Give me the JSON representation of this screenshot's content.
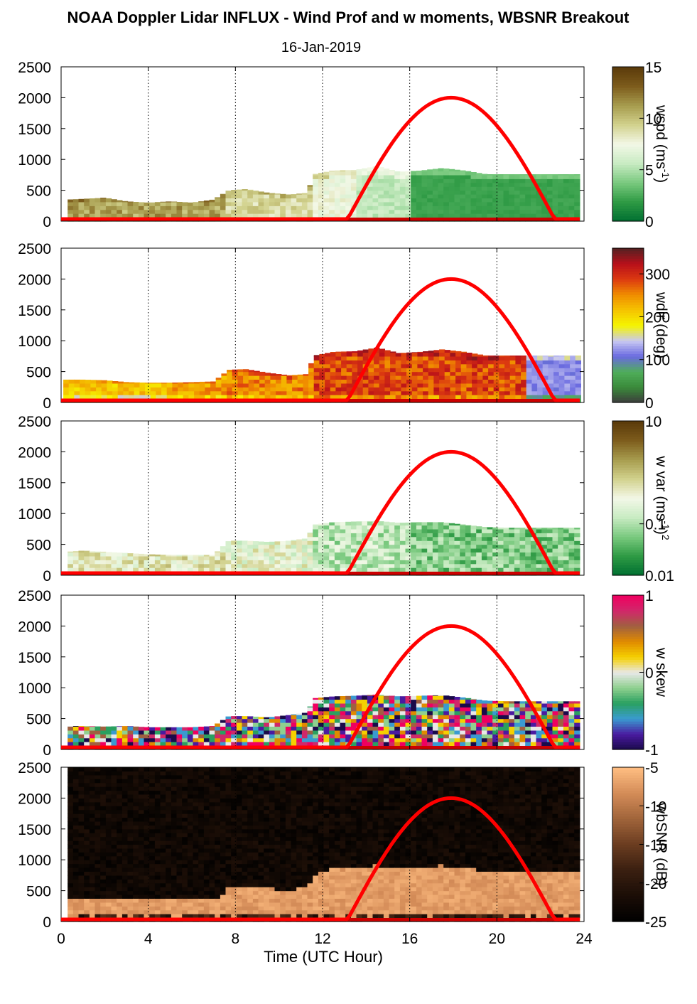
{
  "title": "NOAA Doppler Lidar INFLUX - Wind Prof and w moments, WBSNR Breakout",
  "date": "16-Jan-2019",
  "xlabel": "Time (UTC Hour)",
  "colors": {
    "sun_curve": "#ff0000",
    "fill_baseline": "#cc0000"
  },
  "chart_data": [
    {
      "type": "heatmap",
      "name": "wspd",
      "cbar_label": "wspd (ms",
      "cbar_label_sup": "-1",
      "cbar_label_end": ")",
      "cbar_ticks": [
        "15",
        "10",
        "5",
        "0"
      ],
      "cbar_tick_values": [
        15,
        10,
        5,
        0
      ],
      "cbar_range": [
        0,
        15
      ],
      "xlim": [
        0,
        24
      ],
      "ylim": [
        0,
        2500
      ],
      "x_ticks": [
        "0",
        "4",
        "8",
        "12",
        "16",
        "20",
        "24"
      ],
      "y_ticks": [
        "0",
        "500",
        "1000",
        "1500",
        "2000",
        "2500"
      ],
      "colormap": [
        "#006f31",
        "#2e9a44",
        "#79c97e",
        "#c8ebc2",
        "#f3f8e7",
        "#d2d28e",
        "#a79c4e",
        "#7d5c1c",
        "#5a3a0a"
      ],
      "top_profile": [
        [
          0.3,
          350
        ],
        [
          1,
          360
        ],
        [
          2,
          380
        ],
        [
          3,
          320
        ],
        [
          4,
          300
        ],
        [
          5,
          320
        ],
        [
          6,
          300
        ],
        [
          7,
          350
        ],
        [
          7.7,
          500
        ],
        [
          8.5,
          520
        ],
        [
          9.5,
          460
        ],
        [
          10.5,
          430
        ],
        [
          11.3,
          460
        ],
        [
          11.6,
          760
        ],
        [
          12.5,
          820
        ],
        [
          13.5,
          830
        ],
        [
          14.5,
          890
        ],
        [
          15.5,
          800
        ],
        [
          16.5,
          820
        ],
        [
          17.5,
          860
        ],
        [
          18.5,
          820
        ],
        [
          19.5,
          760
        ],
        [
          20.5,
          760
        ],
        [
          21.5,
          760
        ],
        [
          22.5,
          760
        ],
        [
          23.8,
          760
        ]
      ],
      "regimes": [
        {
          "t0": 0.2,
          "t1": 7.5,
          "value": 11
        },
        {
          "t0": 7.5,
          "t1": 11.5,
          "value": 9
        },
        {
          "t0": 11.5,
          "t1": 13.5,
          "value": 7.5
        },
        {
          "t0": 13.5,
          "t1": 16.0,
          "value": 5.5
        },
        {
          "t0": 16.0,
          "t1": 23.8,
          "value": 2.2
        }
      ]
    },
    {
      "type": "heatmap",
      "name": "wdir",
      "cbar_label": "wdir (deg)",
      "cbar_ticks": [
        "300",
        "200",
        "100",
        "0"
      ],
      "cbar_tick_values": [
        300,
        200,
        100,
        0
      ],
      "cbar_range": [
        0,
        360
      ],
      "xlim": [
        0,
        24
      ],
      "ylim": [
        0,
        2500
      ],
      "x_ticks": [
        "0",
        "4",
        "8",
        "12",
        "16",
        "20",
        "24"
      ],
      "y_ticks": [
        "0",
        "500",
        "1000",
        "1500",
        "2000",
        "2500"
      ],
      "colormap": [
        "#3c3c3c",
        "#3a8a3a",
        "#4fae5a",
        "#6a6ae0",
        "#c9c9f2",
        "#f5f500",
        "#f5c400",
        "#f08c00",
        "#dc3a10",
        "#b80f1a",
        "#552222"
      ],
      "top_profile": [
        [
          0.1,
          370
        ],
        [
          1,
          370
        ],
        [
          2,
          360
        ],
        [
          3,
          330
        ],
        [
          4,
          320
        ],
        [
          5,
          320
        ],
        [
          6,
          330
        ],
        [
          7,
          340
        ],
        [
          7.7,
          530
        ],
        [
          8.5,
          540
        ],
        [
          9.5,
          480
        ],
        [
          10.5,
          440
        ],
        [
          11.3,
          460
        ],
        [
          11.6,
          760
        ],
        [
          12.5,
          820
        ],
        [
          13.5,
          830
        ],
        [
          14.5,
          890
        ],
        [
          15.5,
          800
        ],
        [
          16.5,
          820
        ],
        [
          17.5,
          860
        ],
        [
          18.5,
          820
        ],
        [
          19.5,
          760
        ],
        [
          20.5,
          760
        ],
        [
          21.5,
          760
        ],
        [
          22.5,
          760
        ],
        [
          23.8,
          760
        ]
      ],
      "regimes": [
        {
          "t0": 0.1,
          "t1": 5.0,
          "value": 215
        },
        {
          "t0": 5.0,
          "t1": 7.5,
          "value": 240
        },
        {
          "t0": 7.5,
          "t1": 11.5,
          "value": 255
        },
        {
          "t0": 11.5,
          "t1": 21.2,
          "value": 285
        },
        {
          "t0": 21.2,
          "t1": 23.8,
          "value": 120
        }
      ]
    },
    {
      "type": "heatmap",
      "name": "w var",
      "cbar_label": "w var (ms",
      "cbar_label_sup": "-1",
      "cbar_label_end": ")",
      "cbar_label_sup2": "2",
      "cbar_ticks": [
        "10",
        "0.1",
        "0.01"
      ],
      "cbar_tick_values": [
        10,
        0.1,
        0.01
      ],
      "cbar_scale": "log",
      "cbar_range": [
        0.01,
        10
      ],
      "xlim": [
        0,
        24
      ],
      "ylim": [
        0,
        2500
      ],
      "x_ticks": [
        "0",
        "4",
        "8",
        "12",
        "16",
        "20",
        "24"
      ],
      "y_ticks": [
        "0",
        "500",
        "1000",
        "1500",
        "2000",
        "2500"
      ],
      "colormap": [
        "#006f31",
        "#2e9a44",
        "#79c97e",
        "#c8ebc2",
        "#f3f8e7",
        "#d2d28e",
        "#a79c4e",
        "#7d5c1c",
        "#5a3a0a"
      ],
      "top_profile": [
        [
          0.3,
          380
        ],
        [
          1,
          400
        ],
        [
          2,
          380
        ],
        [
          3,
          360
        ],
        [
          4,
          340
        ],
        [
          5,
          330
        ],
        [
          6,
          330
        ],
        [
          7,
          330
        ],
        [
          7.7,
          560
        ],
        [
          8.5,
          560
        ],
        [
          9.5,
          540
        ],
        [
          10.5,
          560
        ],
        [
          11.3,
          600
        ],
        [
          11.6,
          820
        ],
        [
          12.5,
          860
        ],
        [
          13.5,
          870
        ],
        [
          14.5,
          880
        ],
        [
          15.5,
          850
        ],
        [
          16.5,
          860
        ],
        [
          17.5,
          860
        ],
        [
          18.5,
          820
        ],
        [
          19.5,
          780
        ],
        [
          20.5,
          770
        ],
        [
          21.5,
          770
        ],
        [
          22.5,
          770
        ],
        [
          23.8,
          770
        ]
      ],
      "regimes": [
        {
          "t0": 0.3,
          "t1": 7.5,
          "value": 0.45
        },
        {
          "t0": 7.5,
          "t1": 11.5,
          "value": 0.3
        },
        {
          "t0": 11.5,
          "t1": 16.0,
          "value": 0.12
        },
        {
          "t0": 16.0,
          "t1": 23.8,
          "value": 0.06
        }
      ]
    },
    {
      "type": "heatmap",
      "name": "w skew",
      "cbar_label": "w skew",
      "cbar_ticks": [
        "1",
        "0",
        "-1"
      ],
      "cbar_tick_values": [
        1,
        0,
        -1
      ],
      "cbar_range": [
        -1,
        1
      ],
      "xlim": [
        0,
        24
      ],
      "ylim": [
        0,
        2500
      ],
      "x_ticks": [
        "0",
        "4",
        "8",
        "12",
        "16",
        "20",
        "24"
      ],
      "y_ticks": [
        "0",
        "500",
        "1000",
        "1500",
        "2000",
        "2500"
      ],
      "colormap": [
        "#1a0a4a",
        "#4a1aa0",
        "#3a9ad0",
        "#2aa060",
        "#8fd08f",
        "#e8e8e8",
        "#f5d000",
        "#e08a00",
        "#a06040",
        "#d0286a",
        "#f00060"
      ],
      "top_profile": [
        [
          0.3,
          380
        ],
        [
          1,
          380
        ],
        [
          2,
          370
        ],
        [
          3,
          380
        ],
        [
          4,
          360
        ],
        [
          5,
          360
        ],
        [
          6,
          360
        ],
        [
          7,
          380
        ],
        [
          7.7,
          540
        ],
        [
          8.5,
          540
        ],
        [
          9.5,
          520
        ],
        [
          10.5,
          560
        ],
        [
          11.3,
          600
        ],
        [
          11.6,
          830
        ],
        [
          12.5,
          860
        ],
        [
          13.5,
          870
        ],
        [
          14.5,
          890
        ],
        [
          15.5,
          860
        ],
        [
          16.5,
          870
        ],
        [
          17.5,
          880
        ],
        [
          18.5,
          840
        ],
        [
          19.5,
          790
        ],
        [
          20.5,
          780
        ],
        [
          21.5,
          780
        ],
        [
          22.5,
          780
        ],
        [
          23.8,
          780
        ]
      ],
      "regimes": [
        {
          "t0": 0.3,
          "t1": 23.8,
          "value": 0
        }
      ]
    },
    {
      "type": "heatmap",
      "name": "wbSNR",
      "cbar_label": "wbSNR (dB)",
      "cbar_ticks": [
        "-5",
        "-10",
        "-15",
        "-20",
        "-25"
      ],
      "cbar_tick_values": [
        -5,
        -10,
        -15,
        -20,
        -25
      ],
      "cbar_range": [
        -25,
        -5
      ],
      "xlim": [
        0,
        24
      ],
      "ylim": [
        0,
        2500
      ],
      "x_ticks": [
        "0",
        "4",
        "8",
        "12",
        "16",
        "20",
        "24"
      ],
      "y_ticks": [
        "0",
        "500",
        "1000",
        "1500",
        "2000",
        "2500"
      ],
      "colormap": [
        "#000000",
        "#1a0d06",
        "#3a1f10",
        "#6a3c20",
        "#a0643a",
        "#d48c58",
        "#ffbe82"
      ],
      "top_profile": [
        [
          0.3,
          360
        ],
        [
          2,
          360
        ],
        [
          4,
          360
        ],
        [
          6,
          360
        ],
        [
          7.4,
          360
        ],
        [
          7.6,
          520
        ],
        [
          9,
          520
        ],
        [
          10.5,
          480
        ],
        [
          11.3,
          540
        ],
        [
          11.7,
          760
        ],
        [
          12.5,
          820
        ],
        [
          13.5,
          860
        ],
        [
          14.5,
          880
        ],
        [
          15.5,
          830
        ],
        [
          16.5,
          860
        ],
        [
          17.5,
          880
        ],
        [
          18.5,
          840
        ],
        [
          19.5,
          790
        ],
        [
          20.5,
          760
        ],
        [
          21.5,
          760
        ],
        [
          22.5,
          760
        ],
        [
          23.8,
          760
        ]
      ],
      "regimes": [
        {
          "t0": 0.3,
          "t1": 23.8,
          "value": -5.5
        }
      ]
    }
  ],
  "sun_curve": {
    "start_hour": 13.1,
    "end_hour": 22.7,
    "peak_hour": 17.9,
    "peak_value": 2000
  }
}
